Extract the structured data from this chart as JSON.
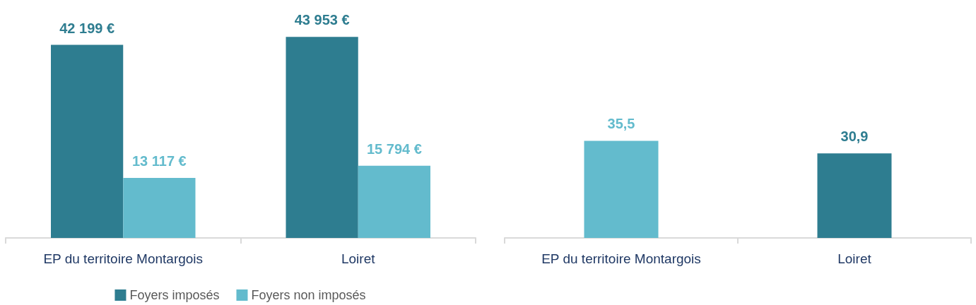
{
  "chart_data": [
    {
      "type": "bar",
      "categories": [
        "EP du territoire Montargois",
        "Loiret"
      ],
      "series": [
        {
          "name": "Foyers imposés",
          "color": "#2e7d90",
          "values": [
            42199,
            43953
          ],
          "value_labels": [
            "42 199 €",
            "43 953 €"
          ]
        },
        {
          "name": "Foyers non imposés",
          "color": "#63bbcd",
          "values": [
            13117,
            15794
          ],
          "value_labels": [
            "13 117 €",
            "15 794 €"
          ]
        }
      ],
      "ylim": [
        0,
        52000
      ],
      "tick_labels": "x",
      "legend": "bottom"
    },
    {
      "type": "bar",
      "categories": [
        "EP du territoire Montargois",
        "Loiret"
      ],
      "values": [
        35.5,
        30.9
      ],
      "colors": [
        "#63bbcd",
        "#2e7d90"
      ],
      "value_labels": [
        "35,5",
        "30,9"
      ],
      "ylim": [
        0,
        87
      ],
      "tick_labels": "x",
      "legend": false
    }
  ]
}
